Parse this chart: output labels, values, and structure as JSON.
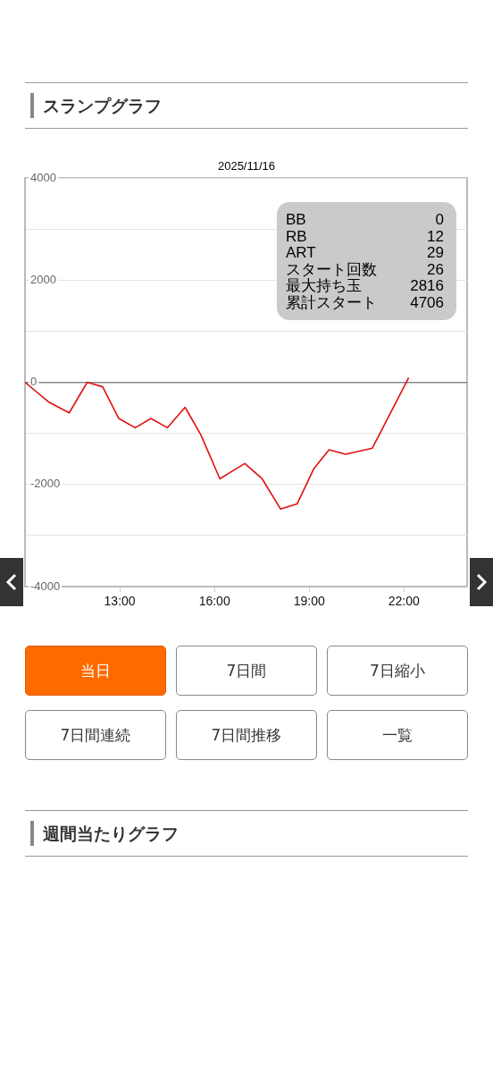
{
  "chart_data": {
    "type": "line",
    "title": "スランプグラフ",
    "subtitle": "2025/11/16",
    "x": [
      10.0,
      10.76,
      11.4,
      11.97,
      12.46,
      12.97,
      13.49,
      13.99,
      14.51,
      15.07,
      15.57,
      16.17,
      16.96,
      17.51,
      18.09,
      18.62,
      19.14,
      19.63,
      20.15,
      21.0,
      22.15
    ],
    "series": [
      {
        "color": "#e01010",
        "values": [
          0,
          -390,
          -600,
          0,
          -90,
          -710,
          -890,
          -710,
          -890,
          -490,
          -1030,
          -1890,
          -1590,
          -1890,
          -2480,
          -2380,
          -1700,
          -1320,
          -1410,
          -1290,
          90
        ]
      }
    ],
    "xlim": [
      10,
      24
    ],
    "xticks": [
      {
        "value": 13,
        "label": "13:00"
      },
      {
        "value": 16,
        "label": "16:00"
      },
      {
        "value": 19,
        "label": "19:00"
      },
      {
        "value": 22,
        "label": "22:00"
      }
    ],
    "ylim": [
      -4000,
      4000
    ],
    "yticks": [
      -4000,
      {
        "value": -3000,
        "label": null
      },
      -2000,
      {
        "value": -1000,
        "label": null
      },
      0,
      {
        "value": 1000,
        "label": null
      },
      2000,
      {
        "value": 3000,
        "label": null
      },
      4000
    ],
    "grid": "y",
    "legend": false,
    "marker": "none",
    "line_style": "solid",
    "annotations": [
      "BB 0",
      "RB 12",
      "ART 29",
      "スタート回数 26",
      "最大持ち玉 2816",
      "累計スタート 4706",
      "当日",
      "7日間",
      "7日縮小",
      "7日間連続",
      "7日間推移",
      "一覧",
      "週間当たりグラフ"
    ]
  }
}
